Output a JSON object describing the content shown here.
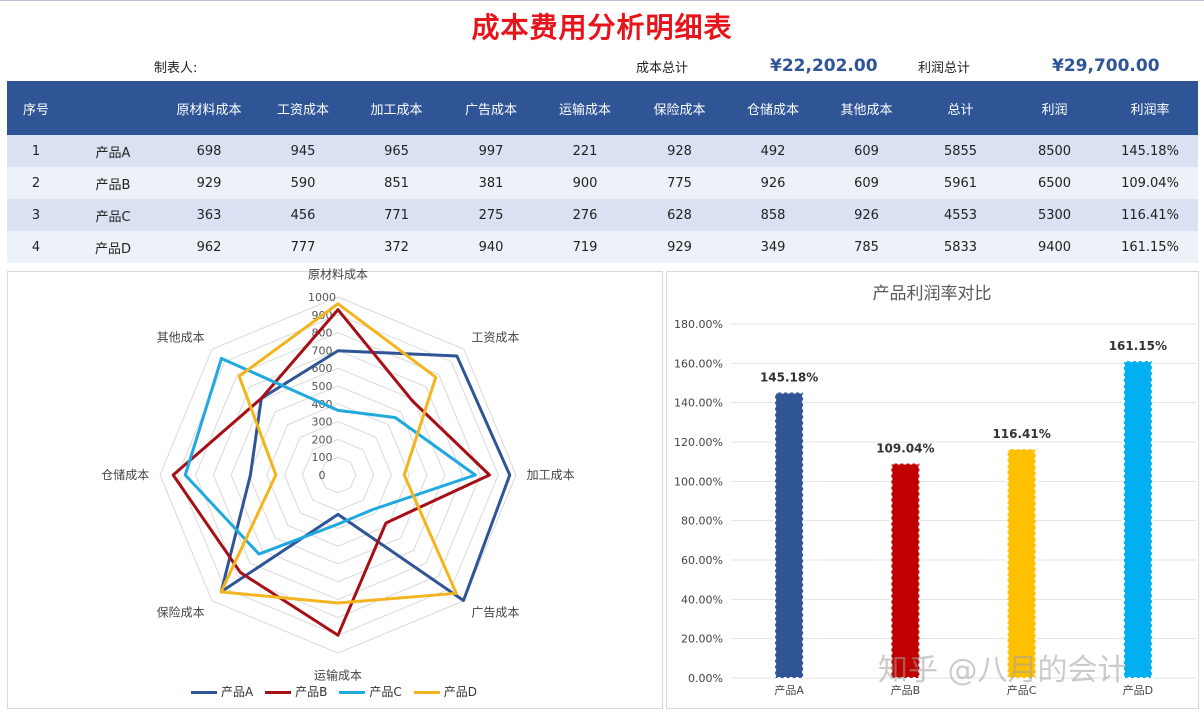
{
  "header": {
    "title": "成本费用分析明细表",
    "maker_label": "制表人:",
    "cost_total_label": "成本总计",
    "cost_total_value": "¥22,202.00",
    "profit_total_label": "利润总计",
    "profit_total_value": "¥29,700.00"
  },
  "table": {
    "columns": [
      "序号",
      "",
      "原材料成本",
      "工资成本",
      "加工成本",
      "广告成本",
      "运输成本",
      "保险成本",
      "仓储成本",
      "其他成本",
      "总计",
      "利润",
      "利润率"
    ],
    "rows": [
      [
        "1",
        "产品A",
        "698",
        "945",
        "965",
        "997",
        "221",
        "928",
        "492",
        "609",
        "5855",
        "8500",
        "145.18%"
      ],
      [
        "2",
        "产品B",
        "929",
        "590",
        "851",
        "381",
        "900",
        "775",
        "926",
        "609",
        "5961",
        "6500",
        "109.04%"
      ],
      [
        "3",
        "产品C",
        "363",
        "456",
        "771",
        "275",
        "276",
        "628",
        "858",
        "926",
        "4553",
        "5300",
        "116.41%"
      ],
      [
        "4",
        "产品D",
        "962",
        "777",
        "372",
        "940",
        "719",
        "929",
        "349",
        "785",
        "5833",
        "9400",
        "161.15%"
      ]
    ]
  },
  "chart_data": [
    {
      "type": "radar",
      "axes": [
        "原材料成本",
        "工资成本",
        "加工成本",
        "广告成本",
        "运输成本",
        "保险成本",
        "仓储成本",
        "其他成本"
      ],
      "rlim": [
        0,
        1000
      ],
      "ticks": [
        "0",
        "100",
        "200",
        "300",
        "400",
        "500",
        "600",
        "700",
        "800",
        "900",
        "1000"
      ],
      "series": [
        {
          "name": "产品A",
          "color": "#2f5597",
          "values": [
            698,
            945,
            965,
            997,
            221,
            928,
            492,
            609
          ]
        },
        {
          "name": "产品B",
          "color": "#a50f15",
          "values": [
            929,
            590,
            851,
            381,
            900,
            775,
            926,
            609
          ]
        },
        {
          "name": "产品C",
          "color": "#1fa9de",
          "values": [
            363,
            456,
            771,
            275,
            276,
            628,
            858,
            926
          ]
        },
        {
          "name": "产品D",
          "color": "#f2b51d",
          "values": [
            962,
            777,
            372,
            940,
            719,
            929,
            349,
            785
          ]
        }
      ],
      "legend_position": "bottom"
    },
    {
      "type": "bar",
      "title": "产品利润率对比",
      "categories": [
        "产品A",
        "产品B",
        "产品C",
        "产品D"
      ],
      "values": [
        145.18,
        109.04,
        116.41,
        161.15
      ],
      "labels": [
        "145.18%",
        "109.04%",
        "116.41%",
        "161.15%"
      ],
      "colors": [
        "#2f5597",
        "#c00000",
        "#ffc000",
        "#00b0f0"
      ],
      "ylim": [
        0,
        180
      ],
      "yticks": [
        "0.00%",
        "20.00%",
        "40.00%",
        "60.00%",
        "80.00%",
        "100.00%",
        "120.00%",
        "140.00%",
        "160.00%",
        "180.00%"
      ],
      "grid": true
    }
  ],
  "watermark": "知乎 @八月的会计"
}
